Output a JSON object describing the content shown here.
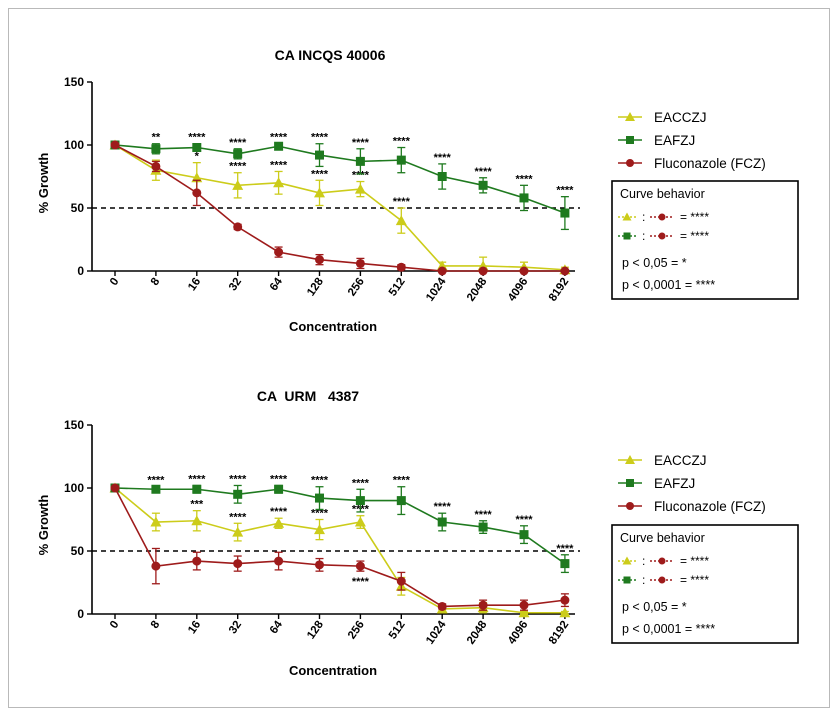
{
  "chart_data": [
    {
      "type": "line",
      "title": "CA INCQS 40006",
      "xlabel": "Concentration",
      "ylabel": "% Growth",
      "categories": [
        "0",
        "8",
        "16",
        "32",
        "64",
        "128",
        "256",
        "512",
        "1024",
        "2048",
        "4096",
        "8192"
      ],
      "ylim": [
        0,
        150
      ],
      "yticks": [
        0,
        50,
        100,
        150
      ],
      "reference_line": 50,
      "series": [
        {
          "name": "EACCZJ",
          "color": "#cccc1a",
          "marker": "triangle",
          "values": [
            100,
            80,
            74,
            68,
            70,
            62,
            65,
            40,
            4,
            4,
            3,
            1
          ],
          "errors": [
            0,
            8,
            12,
            10,
            9,
            10,
            6,
            10,
            3,
            7,
            4,
            2
          ],
          "stars": [
            "",
            "",
            "*",
            "****",
            "****",
            "****",
            "****",
            "****",
            "",
            "",
            "",
            ""
          ]
        },
        {
          "name": "EAFZJ",
          "color": "#1f7a1f",
          "marker": "square",
          "values": [
            100,
            97,
            98,
            93,
            99,
            92,
            87,
            88,
            75,
            68,
            58,
            46
          ],
          "errors": [
            0,
            4,
            3,
            4,
            2,
            9,
            10,
            10,
            10,
            6,
            10,
            13
          ],
          "stars": [
            "",
            "**",
            "****",
            "****",
            "****",
            "****",
            "****",
            "****",
            "****",
            "****",
            "****",
            "****"
          ]
        },
        {
          "name": "Fluconazole (FCZ)",
          "color": "#9e1b1b",
          "marker": "circle",
          "values": [
            100,
            83,
            62,
            35,
            15,
            9,
            6,
            3,
            0,
            0,
            0,
            0
          ],
          "errors": [
            0,
            4,
            10,
            2,
            4,
            4,
            4,
            2,
            1,
            0,
            0,
            0
          ],
          "stars": [
            "",
            "",
            "",
            "",
            "",
            "",
            "",
            "",
            "",
            "",
            "",
            ""
          ]
        }
      ],
      "legend": {
        "placement": "right"
      },
      "annotation_box": {
        "title": "Curve behavior",
        "rows": [
          {
            "left": "yellow-triangle",
            "right": "red-circle",
            "text": "= ****"
          },
          {
            "left": "green-square",
            "right": "red-circle",
            "text": "= ****"
          }
        ],
        "lines": [
          "p < 0,05 = *",
          "p < 0,0001 = ****"
        ]
      }
    },
    {
      "type": "line",
      "title": "CA  URM   4387",
      "xlabel": "Concentration",
      "ylabel": "% Growth",
      "categories": [
        "0",
        "8",
        "16",
        "32",
        "64",
        "128",
        "256",
        "512",
        "1024",
        "2048",
        "4096",
        "8192"
      ],
      "ylim": [
        0,
        150
      ],
      "yticks": [
        0,
        50,
        100,
        150
      ],
      "reference_line": 50,
      "series": [
        {
          "name": "EACCZJ",
          "color": "#cccc1a",
          "marker": "triangle",
          "values": [
            100,
            73,
            74,
            65,
            72,
            67,
            73,
            22,
            4,
            5,
            1,
            1
          ],
          "errors": [
            0,
            7,
            8,
            7,
            4,
            8,
            5,
            7,
            2,
            4,
            1,
            1
          ],
          "stars": [
            "",
            "",
            "***",
            "****",
            "****",
            "****",
            "****",
            "",
            "",
            "",
            "",
            ""
          ]
        },
        {
          "name": "EAFZJ",
          "color": "#1f7a1f",
          "marker": "square",
          "values": [
            100,
            99,
            99,
            95,
            99,
            92,
            90,
            90,
            73,
            69,
            63,
            40
          ],
          "errors": [
            0,
            2,
            3,
            7,
            3,
            9,
            9,
            11,
            7,
            5,
            7,
            7
          ],
          "stars": [
            "",
            "****",
            "****",
            "****",
            "****",
            "****",
            "****",
            "****",
            "****",
            "****",
            "****",
            "****"
          ]
        },
        {
          "name": "Fluconazole (FCZ)",
          "color": "#9e1b1b",
          "marker": "circle",
          "values": [
            100,
            38,
            42,
            40,
            42,
            39,
            38,
            26,
            6,
            7,
            7,
            11
          ],
          "errors": [
            0,
            14,
            7,
            6,
            7,
            5,
            4,
            7,
            2,
            4,
            4,
            5
          ],
          "stars": [
            "",
            "",
            "",
            "",
            "",
            "",
            "****",
            "",
            "",
            "",
            "",
            ""
          ]
        }
      ],
      "legend": {
        "placement": "right"
      },
      "annotation_box": {
        "title": "Curve behavior",
        "rows": [
          {
            "left": "yellow-triangle",
            "right": "red-circle",
            "text": "= ****"
          },
          {
            "left": "green-square",
            "right": "red-circle",
            "text": "= ****"
          }
        ],
        "lines": [
          "p < 0,05 = *",
          "p < 0,0001 = ****"
        ]
      }
    }
  ]
}
